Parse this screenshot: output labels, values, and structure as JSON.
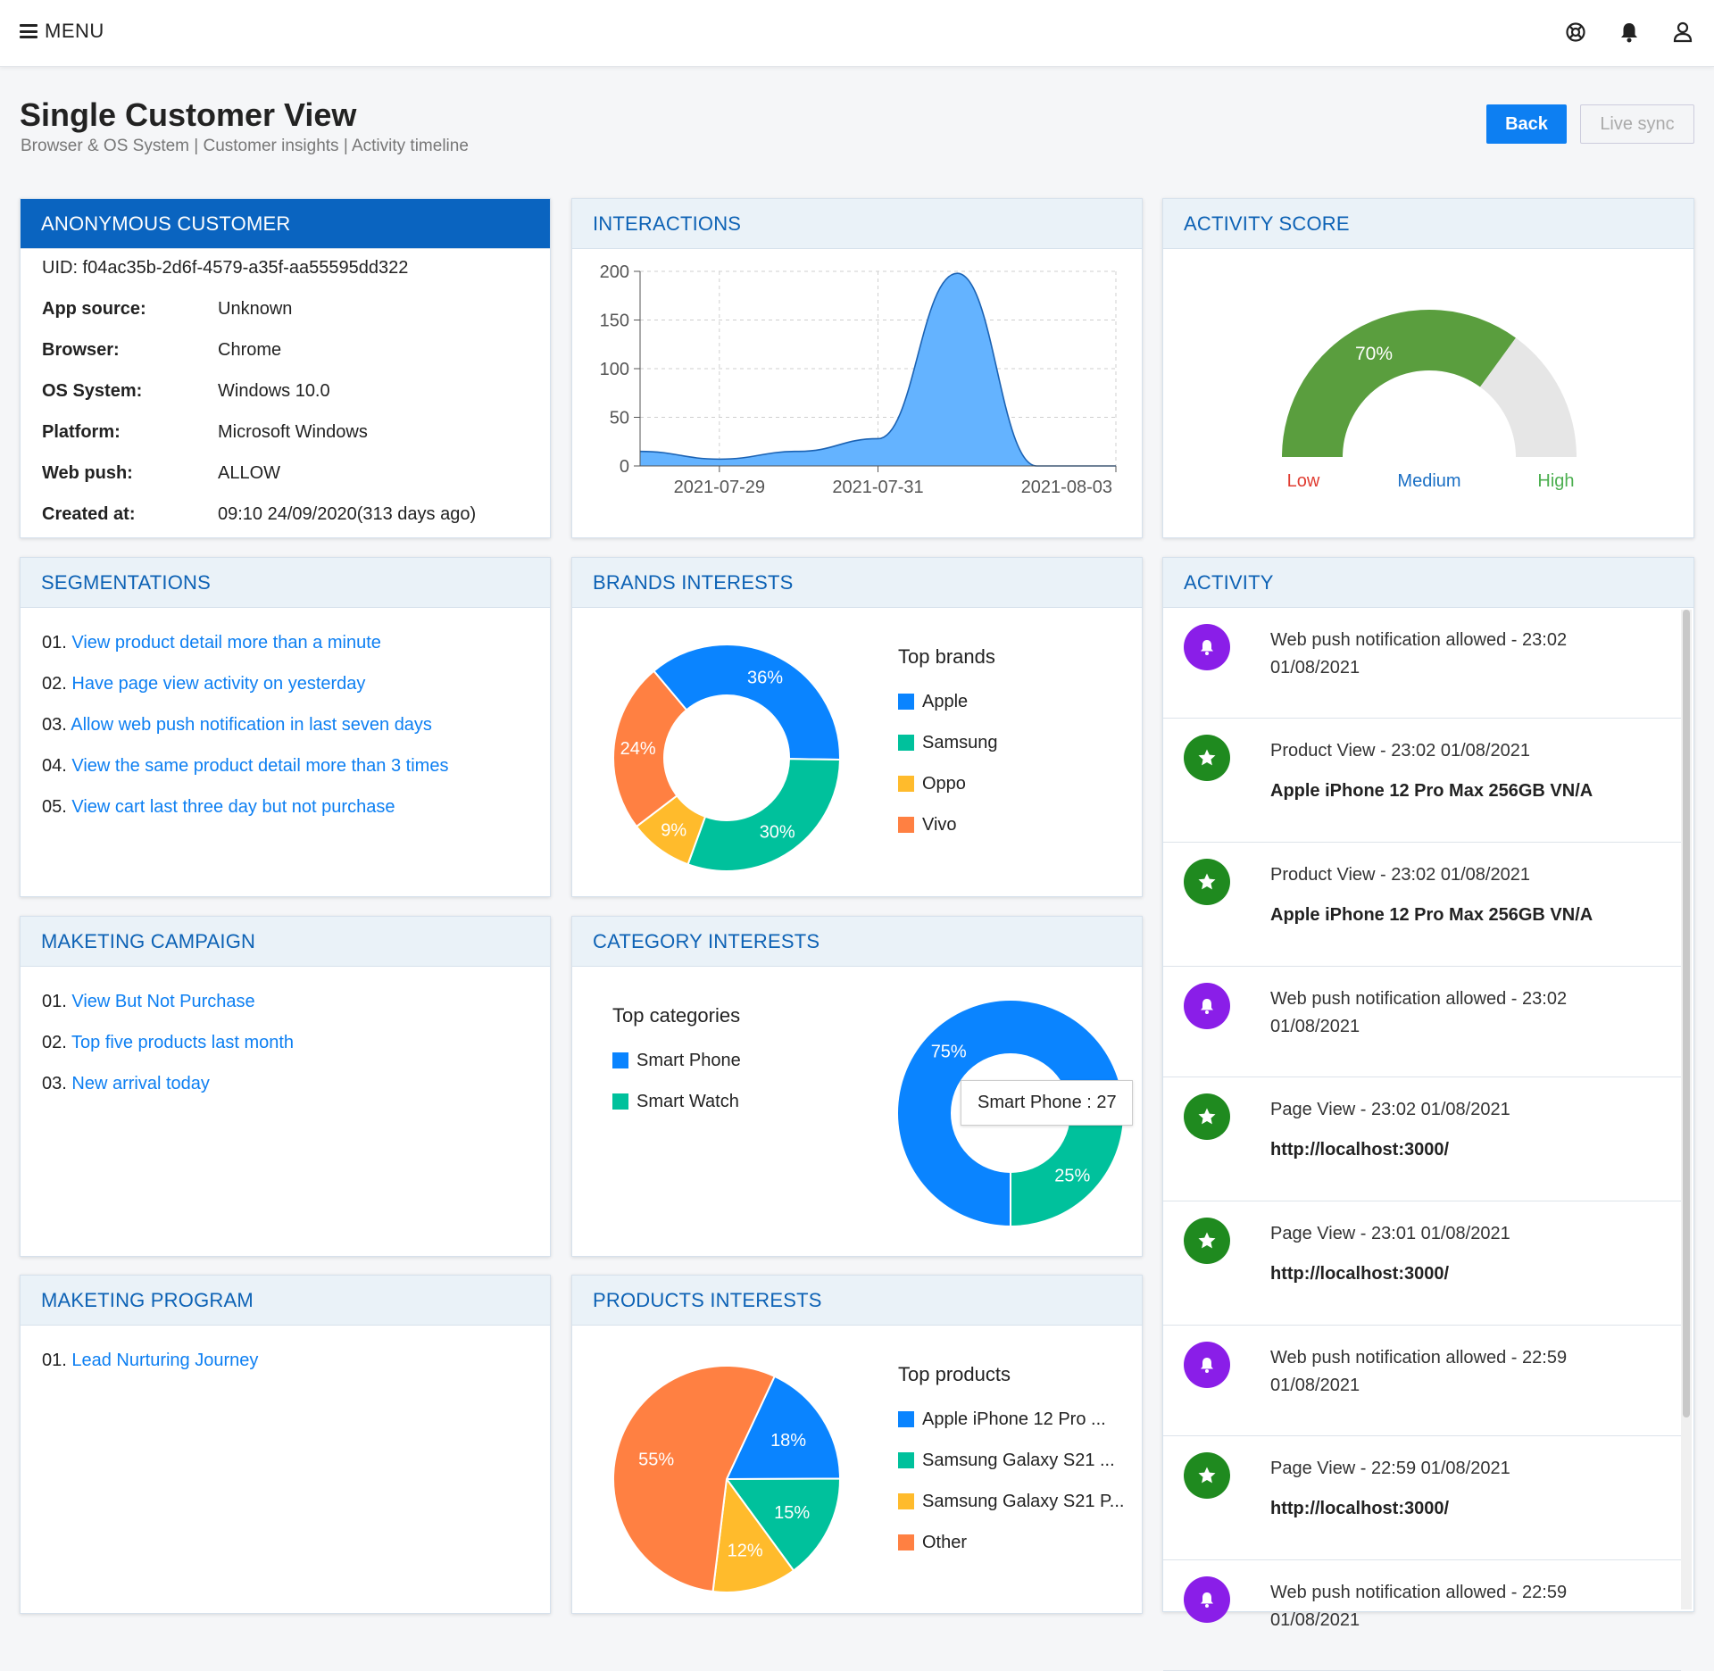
{
  "topbar": {
    "menu_label": "MENU",
    "icons": [
      "support-icon",
      "bell-icon",
      "user-icon"
    ]
  },
  "header": {
    "title": "Single Customer View",
    "breadcrumb": "Browser & OS System | Customer insights | Activity timeline",
    "back_label": "Back",
    "sync_label": "Live sync"
  },
  "customer": {
    "title": "ANONYMOUS CUSTOMER",
    "uid": "UID: f04ac35b-2d6f-4579-a35f-aa55595dd322",
    "rows": [
      {
        "key": "App source:",
        "value": "Unknown"
      },
      {
        "key": "Browser:",
        "value": "Chrome"
      },
      {
        "key": "OS System:",
        "value": "Windows 10.0"
      },
      {
        "key": "Platform:",
        "value": "Microsoft Windows"
      },
      {
        "key": "Web push:",
        "value": "ALLOW"
      },
      {
        "key": "Created at:",
        "value": "09:10 24/09/2020(313 days ago)"
      }
    ]
  },
  "interactions": {
    "title": "INTERACTIONS",
    "chart_data": {
      "type": "area",
      "x": [
        "2021-07-28",
        "2021-07-29",
        "2021-07-30",
        "2021-07-31",
        "2021-08-01",
        "2021-08-02",
        "2021-08-03"
      ],
      "values": [
        15,
        7,
        15,
        28,
        198,
        0,
        0
      ],
      "xticks": [
        "2021-07-29",
        "2021-07-31",
        "2021-08-03"
      ],
      "yticks": [
        "0",
        "50",
        "100",
        "150",
        "200"
      ],
      "ylim": [
        0,
        200
      ],
      "grid": true,
      "color": "#64b3ff"
    }
  },
  "activity_score": {
    "title": "ACTIVITY SCORE",
    "chart_data": {
      "type": "gauge",
      "value": 70,
      "value_label": "70%",
      "labels": [
        "Low",
        "Medium",
        "High"
      ]
    },
    "colors": {
      "fill": "#5a9e3e",
      "track": "#e6e6e6",
      "low": "#e03c31",
      "medium": "#1a6fc4",
      "high": "#4caf50"
    }
  },
  "segmentations": {
    "title": "SEGMENTATIONS",
    "items": [
      {
        "num": "01.",
        "label": "View product detail more than a minute"
      },
      {
        "num": "02.",
        "label": "Have page view activity on yesterday"
      },
      {
        "num": "03.",
        "label": "Allow web push notification in last seven days"
      },
      {
        "num": "04.",
        "label": "View the same product detail more than 3 times"
      },
      {
        "num": "05.",
        "label": "View cart last three day but not purchase"
      }
    ]
  },
  "brands": {
    "title": "BRANDS INTERESTS",
    "legend_title": "Top brands",
    "chart_data": {
      "type": "pie",
      "variant": "donut",
      "labels": [
        "Apple",
        "Samsung",
        "Oppo",
        "Vivo"
      ],
      "values": [
        36,
        30,
        9,
        24
      ],
      "value_labels": [
        "36%",
        "30%",
        "9%",
        "24%"
      ],
      "colors": [
        "#0a84ff",
        "#00c19c",
        "#ffbb2c",
        "#ff8042"
      ]
    }
  },
  "campaign": {
    "title": "MAKETING CAMPAIGN",
    "items": [
      {
        "num": "01.",
        "label": "View But Not Purchase"
      },
      {
        "num": "02.",
        "label": "Top five products last month"
      },
      {
        "num": "03.",
        "label": "New arrival today"
      }
    ]
  },
  "categories": {
    "title": "CATEGORY INTERESTS",
    "legend_title": "Top categories",
    "tooltip": "Smart Phone : 27",
    "chart_data": {
      "type": "pie",
      "variant": "donut",
      "labels": [
        "Smart Phone",
        "Smart Watch"
      ],
      "values": [
        75,
        25
      ],
      "value_labels": [
        "75%",
        "25%"
      ],
      "colors": [
        "#0a84ff",
        "#00c19c"
      ]
    }
  },
  "program": {
    "title": "MAKETING PROGRAM",
    "items": [
      {
        "num": "01.",
        "label": "Lead Nurturing Journey"
      }
    ]
  },
  "products": {
    "title": "PRODUCTS INTERESTS",
    "legend_title": "Top products",
    "chart_data": {
      "type": "pie",
      "labels": [
        "Apple iPhone 12 Pro ...",
        "Samsung Galaxy S21 ...",
        "Samsung Galaxy S21 P...",
        "Other"
      ],
      "values": [
        18,
        15,
        12,
        55
      ],
      "value_labels": [
        "18%",
        "15%",
        "12%",
        "55%"
      ],
      "colors": [
        "#0a84ff",
        "#00c19c",
        "#ffbb2c",
        "#ff8042"
      ]
    }
  },
  "activity": {
    "title": "ACTIVITY",
    "items": [
      {
        "type": "push",
        "icon": "bell-icon",
        "text": "Web push notification allowed - 23:02 01/08/2021",
        "sub": ""
      },
      {
        "type": "view",
        "icon": "star-icon",
        "text": "Product View - 23:02 01/08/2021",
        "sub": "Apple iPhone 12 Pro Max 256GB VN/A"
      },
      {
        "type": "view",
        "icon": "star-icon",
        "text": "Product View - 23:02 01/08/2021",
        "sub": "Apple iPhone 12 Pro Max 256GB VN/A"
      },
      {
        "type": "push",
        "icon": "bell-icon",
        "text": "Web push notification allowed - 23:02 01/08/2021",
        "sub": ""
      },
      {
        "type": "view",
        "icon": "star-icon",
        "text": "Page View - 23:02 01/08/2021",
        "sub": "http://localhost:3000/"
      },
      {
        "type": "view",
        "icon": "star-icon",
        "text": "Page View - 23:01 01/08/2021",
        "sub": "http://localhost:3000/"
      },
      {
        "type": "push",
        "icon": "bell-icon",
        "text": "Web push notification allowed - 22:59 01/08/2021",
        "sub": ""
      },
      {
        "type": "view",
        "icon": "star-icon",
        "text": "Page View - 22:59 01/08/2021",
        "sub": "http://localhost:3000/"
      },
      {
        "type": "push",
        "icon": "bell-icon",
        "text": "Web push notification allowed - 22:59 01/08/2021",
        "sub": ""
      }
    ]
  }
}
